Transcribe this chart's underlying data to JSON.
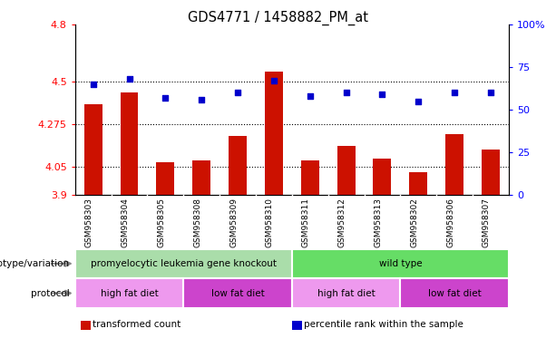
{
  "title": "GDS4771 / 1458882_PM_at",
  "samples": [
    "GSM958303",
    "GSM958304",
    "GSM958305",
    "GSM958308",
    "GSM958309",
    "GSM958310",
    "GSM958311",
    "GSM958312",
    "GSM958313",
    "GSM958302",
    "GSM958306",
    "GSM958307"
  ],
  "transformed_count": [
    4.38,
    4.44,
    4.07,
    4.08,
    4.21,
    4.55,
    4.08,
    4.16,
    4.09,
    4.02,
    4.22,
    4.14
  ],
  "percentile_rank": [
    65,
    68,
    57,
    56,
    60,
    67,
    58,
    60,
    59,
    55,
    60,
    60
  ],
  "ylim_left": [
    3.9,
    4.8
  ],
  "ylim_right": [
    0,
    100
  ],
  "yticks_left": [
    3.9,
    4.05,
    4.275,
    4.5,
    4.8
  ],
  "ytick_labels_left": [
    "3.9",
    "4.05",
    "4.275",
    "4.5",
    "4.8"
  ],
  "yticks_right": [
    0,
    25,
    50,
    75,
    100
  ],
  "ytick_labels_right": [
    "0",
    "25",
    "50",
    "75",
    "100%"
  ],
  "hlines": [
    4.05,
    4.275,
    4.5
  ],
  "bar_color": "#cc1100",
  "dot_color": "#0000cc",
  "bar_bottom": 3.9,
  "genotype_groups": [
    {
      "label": "promyelocytic leukemia gene knockout",
      "start": 0,
      "end": 6,
      "color": "#aaeea a"
    },
    {
      "label": "wild type",
      "start": 6,
      "end": 12,
      "color": "#66ee66"
    }
  ],
  "protocol_colors": {
    "high fat diet": "#ee99ee",
    "low fat diet": "#cc44cc"
  },
  "protocol_groups": [
    {
      "label": "high fat diet",
      "start": 0,
      "end": 3
    },
    {
      "label": "low fat diet",
      "start": 3,
      "end": 6
    },
    {
      "label": "high fat diet",
      "start": 6,
      "end": 9
    },
    {
      "label": "low fat diet",
      "start": 9,
      "end": 12
    }
  ],
  "row_labels": [
    "genotype/variation",
    "protocol"
  ],
  "legend_items": [
    {
      "label": "transformed count",
      "color": "#cc1100"
    },
    {
      "label": "percentile rank within the sample",
      "color": "#0000cc"
    }
  ],
  "genotype_colors": [
    "#aaddaa",
    "#66dd66"
  ],
  "protocol_color_high": "#ee99ee",
  "protocol_color_low": "#cc44cc"
}
